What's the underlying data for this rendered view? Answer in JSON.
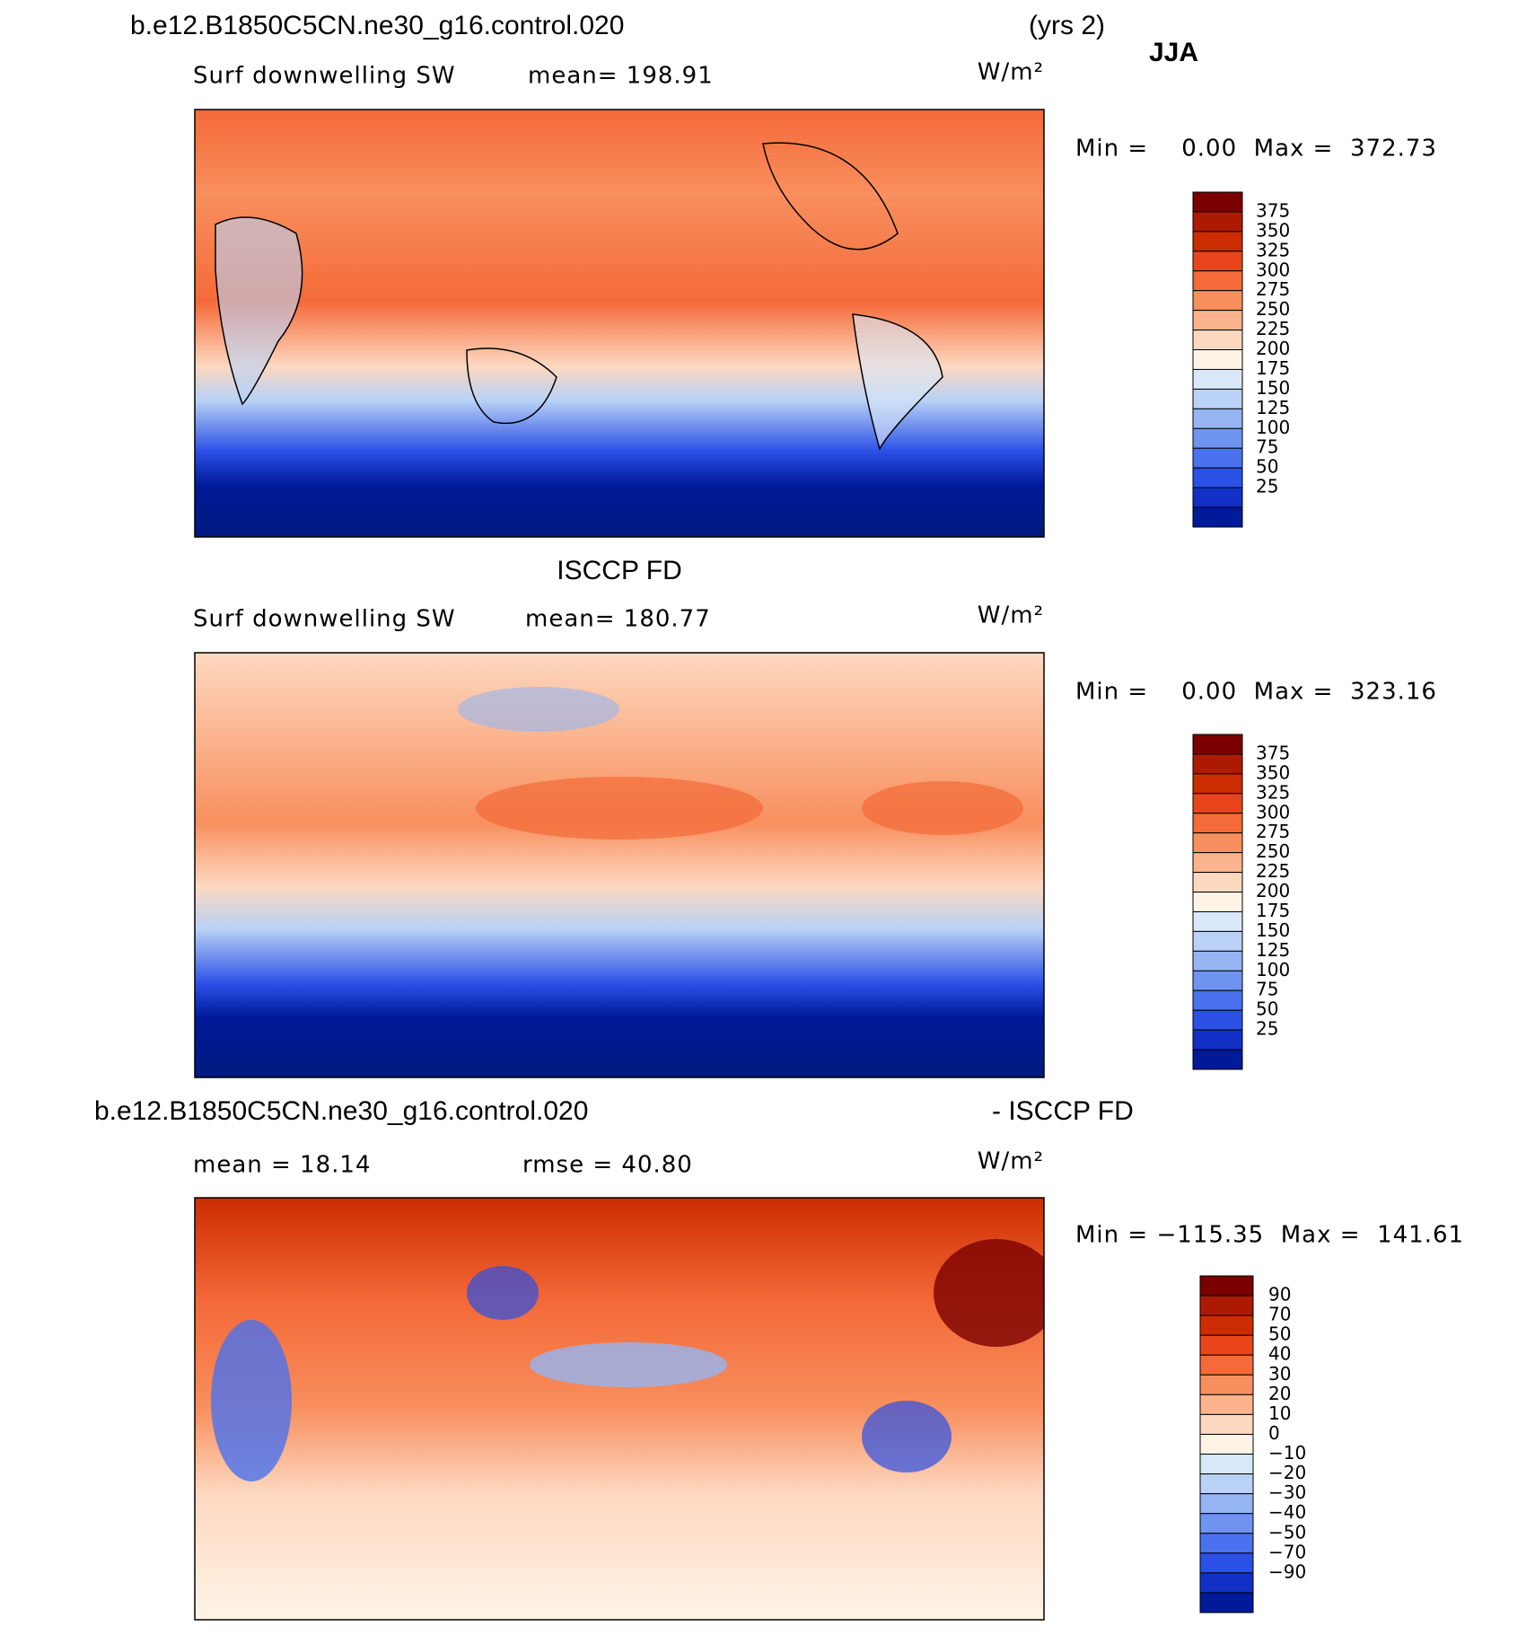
{
  "header": {
    "case": "b.e12.B1850C5CN.ne30_g16.control.020",
    "years": "(yrs 2)",
    "season": "JJA"
  },
  "panels": [
    {
      "title": null,
      "left": "Surf downwelling SW",
      "center": "mean= 198.91",
      "units": "W/m²",
      "stats": "Min =    0.00  Max =  372.73",
      "colorbar": {
        "labels": [
          "375",
          "350",
          "325",
          "300",
          "275",
          "250",
          "225",
          "200",
          "175",
          "150",
          "125",
          "100",
          "75",
          "50",
          "25"
        ],
        "colors": [
          "#7a0000",
          "#ad1a02",
          "#cc2d00",
          "#e8461a",
          "#f46a38",
          "#f88f5e",
          "#fbb48e",
          "#fdd8c0",
          "#fff3e6",
          "#d9e8f8",
          "#b9d2f6",
          "#95b5f3",
          "#6f94f0",
          "#4a72ee",
          "#2a50e6",
          "#1230c6",
          "#001a99"
        ]
      }
    },
    {
      "title": "ISCCP FD",
      "left": "Surf downwelling SW",
      "center": "mean= 180.77",
      "units": "W/m²",
      "stats": "Min =    0.00  Max =  323.16",
      "colorbar": {
        "labels": [
          "375",
          "350",
          "325",
          "300",
          "275",
          "250",
          "225",
          "200",
          "175",
          "150",
          "125",
          "100",
          "75",
          "50",
          "25"
        ],
        "colors": [
          "#7a0000",
          "#ad1a02",
          "#cc2d00",
          "#e8461a",
          "#f46a38",
          "#f88f5e",
          "#fbb48e",
          "#fdd8c0",
          "#fff3e6",
          "#d9e8f8",
          "#b9d2f6",
          "#95b5f3",
          "#6f94f0",
          "#4a72ee",
          "#2a50e6",
          "#1230c6",
          "#001a99"
        ]
      }
    },
    {
      "title": "b.e12.B1850C5CN.ne30_g16.control.020",
      "title_right": "- ISCCP FD",
      "left": "mean =   18.14",
      "center": "rmse =   40.80",
      "units": "W/m²",
      "stats": "Min = −115.35  Max =  141.61",
      "colorbar": {
        "labels": [
          "90",
          "70",
          "50",
          "40",
          "30",
          "20",
          "10",
          "0",
          "−10",
          "−20",
          "−30",
          "−40",
          "−50",
          "−70",
          "−90"
        ],
        "colors": [
          "#7a0000",
          "#ad1a02",
          "#cc2d00",
          "#e8461a",
          "#f46a38",
          "#f88f5e",
          "#fbb48e",
          "#fdd8c0",
          "#fff3e6",
          "#d9e8f8",
          "#b9d2f6",
          "#95b5f3",
          "#6f94f0",
          "#4a72ee",
          "#2a50e6",
          "#1230c6",
          "#001a99"
        ]
      }
    }
  ]
}
